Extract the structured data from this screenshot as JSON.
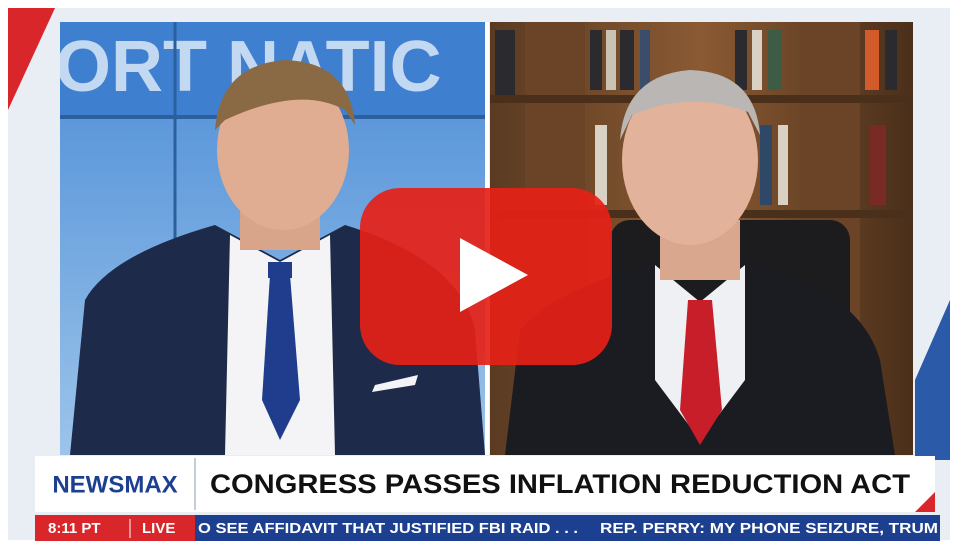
{
  "video": {
    "studio_wall_text": "ORT NATIC",
    "lower_third": {
      "brand": "NEWSMAX",
      "headline": "CONGRESS PASSES INFLATION REDUCTION ACT"
    },
    "ticker": {
      "time": "8:11 PT",
      "status": "LIVE",
      "items": [
        "O SEE AFFIDAVIT THAT JUSTIFIED FBI RAID . . .",
        "REP. PERRY: MY PHONE SEIZURE, TRUM"
      ]
    }
  }
}
